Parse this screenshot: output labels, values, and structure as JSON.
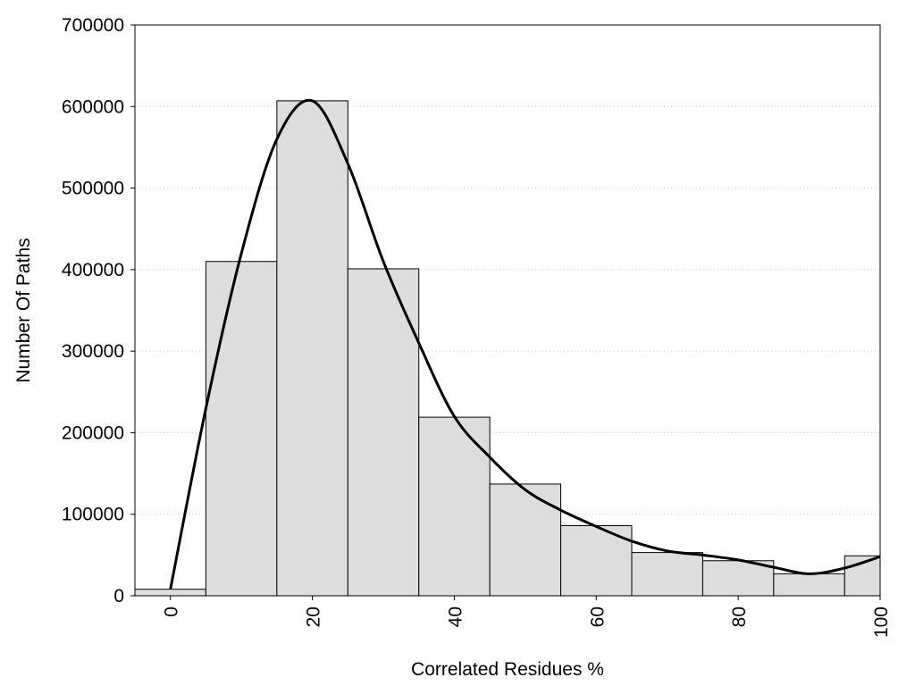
{
  "chart_data": {
    "type": "bar",
    "title": "",
    "xlabel": "Correlated Residues %",
    "ylabel": "Number Of Paths",
    "xlim": [
      -5,
      100
    ],
    "ylim": [
      0,
      700000
    ],
    "grid": "horizontal dotted",
    "x_ticks": [
      0,
      20,
      40,
      60,
      80,
      100
    ],
    "x_tick_labels": [
      "0",
      "20",
      "40",
      "60",
      "80",
      "100"
    ],
    "y_ticks": [
      0,
      100000,
      200000,
      300000,
      400000,
      500000,
      600000,
      700000
    ],
    "y_tick_labels": [
      "0",
      "100000",
      "200000",
      "300000",
      "400000",
      "500000",
      "600000",
      "700000"
    ],
    "bin_width": 10,
    "bins": [
      0,
      10,
      20,
      30,
      40,
      50,
      60,
      70,
      80,
      90,
      100
    ],
    "values": [
      8000,
      410000,
      607000,
      401000,
      219000,
      137000,
      86000,
      53000,
      43000,
      27000,
      49000
    ],
    "bar_color": "#dddddd",
    "bar_edge_color": "#000000",
    "smooth_curve": {
      "x": [
        0,
        5,
        10,
        15,
        20,
        25,
        30,
        35,
        40,
        45,
        50,
        55,
        60,
        65,
        70,
        75,
        80,
        85,
        90,
        95,
        100
      ],
      "y": [
        8000,
        230000,
        420000,
        560000,
        607000,
        530000,
        410000,
        310000,
        220000,
        170000,
        130000,
        105000,
        85000,
        67000,
        55000,
        50000,
        44000,
        35000,
        27000,
        34000,
        48000
      ],
      "color": "#000000"
    }
  }
}
